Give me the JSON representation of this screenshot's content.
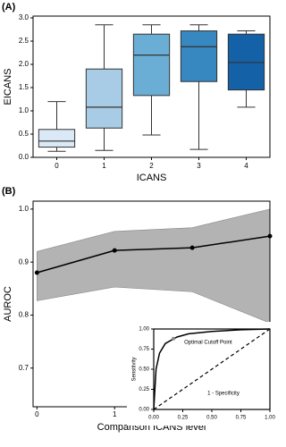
{
  "chart_data": [
    {
      "type": "box",
      "panel_label": "(A)",
      "x_label": "ICANS",
      "y_label": "EICANS",
      "categories": [
        "0",
        "1",
        "2",
        "3",
        "4"
      ],
      "values": [
        {
          "low": 0.13,
          "q1": 0.22,
          "median": 0.35,
          "q3": 0.6,
          "high": 1.2
        },
        {
          "low": 0.15,
          "q1": 0.63,
          "median": 1.08,
          "q3": 1.9,
          "high": 2.85
        },
        {
          "low": 0.48,
          "q1": 1.33,
          "median": 2.2,
          "q3": 2.65,
          "high": 2.85
        },
        {
          "low": 0.17,
          "q1": 1.63,
          "median": 2.38,
          "q3": 2.72,
          "high": 2.85
        },
        {
          "low": 1.08,
          "q1": 1.45,
          "median": 2.04,
          "q3": 2.65,
          "high": 2.72
        }
      ],
      "colors": [
        "#dbe9f6",
        "#a8cce5",
        "#6aaed6",
        "#3787c0",
        "#1561a8"
      ],
      "ylim": [
        0,
        3.0
      ],
      "yticks": [
        {
          "value": 0,
          "label": "0.0"
        },
        {
          "value": 0.5,
          "label": "0.5"
        },
        {
          "value": 1,
          "label": "1.0"
        },
        {
          "value": 1.5,
          "label": "1.5"
        },
        {
          "value": 2,
          "label": "2.0"
        },
        {
          "value": 2.5,
          "label": "2.5"
        },
        {
          "value": 3,
          "label": "3.0"
        }
      ]
    },
    {
      "type": "band-line",
      "panel_label": "(B)",
      "x_label": "Comparison ICANS level",
      "y_label": "AUROC",
      "x": [
        0,
        1,
        2,
        3
      ],
      "values": [
        0.88,
        0.922,
        0.927,
        0.949
      ],
      "lower": [
        0.827,
        0.853,
        0.844,
        0.785
      ],
      "upper": [
        0.92,
        0.958,
        0.965,
        1.0
      ],
      "color": "#000000",
      "band_color": "#b3b3b3",
      "xlim": [
        -0.05,
        3
      ],
      "ylim": [
        0.627,
        1.015
      ],
      "xticks": [
        0,
        1,
        2,
        3
      ],
      "yticks": [
        0.7,
        0.8,
        0.9,
        {
          "value": 1,
          "label": "1.0"
        }
      ]
    },
    {
      "type": "roc",
      "x_label": "1 - Specificity",
      "y_label": "Sensitivity",
      "annotation": "Optimal Cutoff Point",
      "x": [
        0,
        0.02,
        0.05,
        0.1,
        0.2,
        0.3,
        0.5,
        0.75,
        1
      ],
      "values": [
        0,
        0.5,
        0.7,
        0.82,
        0.9,
        0.94,
        0.97,
        0.99,
        1
      ],
      "cutoff": {
        "x": 0.17,
        "y": 0.88
      },
      "color": "#000000",
      "xlim": [
        0,
        1
      ],
      "ylim": [
        0,
        1
      ],
      "xticks": [
        {
          "value": 0,
          "label": "0.00"
        },
        {
          "value": 0.25,
          "label": "0.25"
        },
        {
          "value": 0.5,
          "label": "0.50"
        },
        {
          "value": 0.75,
          "label": "0.75"
        },
        {
          "value": 1,
          "label": "1.00"
        }
      ],
      "yticks": [
        {
          "value": 0,
          "label": "0.00"
        },
        {
          "value": 0.25,
          "label": "0.25"
        },
        {
          "value": 0.5,
          "label": "0.50"
        },
        {
          "value": 0.75,
          "label": "0.75"
        },
        {
          "value": 1,
          "label": "1.00"
        }
      ]
    }
  ]
}
